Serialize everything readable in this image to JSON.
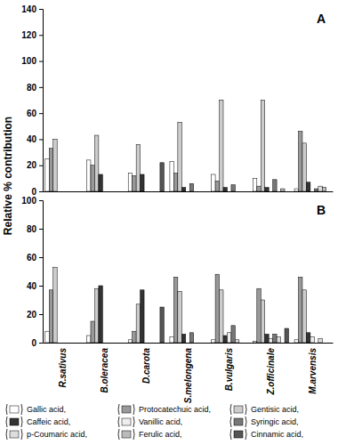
{
  "chart_data": [
    {
      "type": "bar",
      "title": "A",
      "ylabel": "Relative % contribution",
      "categories": [
        "R.sativus",
        "B.oleracea",
        "D.carota",
        "S.melongena",
        "B.vulgaris",
        "Z.officinale",
        "M.arvensis"
      ],
      "ylim": [
        0,
        140
      ],
      "yticks": [
        0,
        20,
        40,
        60,
        80,
        100,
        120,
        140
      ],
      "tick_labels": "y",
      "legend": false,
      "series": [
        {
          "name": "Gallic acid,",
          "color": "#ffffff",
          "values": [
            25,
            24,
            14,
            23,
            13,
            10,
            2
          ]
        },
        {
          "name": "Protocatechuic acid,",
          "color": "#999999",
          "values": [
            33,
            20,
            12,
            14,
            8,
            4,
            46
          ]
        },
        {
          "name": "Gentisic acid,",
          "color": "#cccccc",
          "values": [
            40,
            43,
            36,
            53,
            70,
            70,
            37
          ]
        },
        {
          "name": "Caffeic acid,",
          "color": "#333333",
          "values": [
            0,
            13,
            13,
            3,
            3,
            3,
            7
          ]
        },
        {
          "name": "Vanillic acid,",
          "color": "#eeeeee",
          "values": [
            0,
            0,
            0,
            0,
            0,
            0,
            0
          ]
        },
        {
          "name": "Syringic acid,",
          "color": "#777777",
          "values": [
            0,
            0,
            0,
            6,
            5,
            9,
            2
          ]
        },
        {
          "name": "p-Coumaric acid,",
          "color": "#dddddd",
          "values": [
            0,
            0,
            0,
            0,
            0,
            0,
            4
          ]
        },
        {
          "name": "Ferulic acid,",
          "color": "#bbbbbb",
          "values": [
            0,
            0,
            0,
            0,
            0,
            2,
            3
          ]
        },
        {
          "name": "Cinnamic acid,",
          "color": "#555555",
          "values": [
            0,
            0,
            22,
            0,
            0,
            0,
            0
          ]
        }
      ]
    },
    {
      "type": "bar",
      "title": "B",
      "categories": [
        "R.sativus",
        "B.oleracea",
        "D.carota",
        "S.melongena",
        "B.vulgaris",
        "Z.officinale",
        "M.arvensis"
      ],
      "ylim": [
        0,
        100
      ],
      "yticks": [
        0,
        20,
        40,
        60,
        80,
        100
      ],
      "legend": "bottom",
      "series": [
        {
          "name": "Gallic acid,",
          "color": "#ffffff",
          "values": [
            8,
            5,
            2,
            4,
            2,
            1,
            2
          ]
        },
        {
          "name": "Protocatechuic acid,",
          "color": "#999999",
          "values": [
            37,
            15,
            8,
            46,
            48,
            38,
            46
          ]
        },
        {
          "name": "Gentisic acid,",
          "color": "#cccccc",
          "values": [
            53,
            38,
            27,
            36,
            37,
            30,
            37
          ]
        },
        {
          "name": "Caffeic acid,",
          "color": "#333333",
          "values": [
            0,
            40,
            37,
            6,
            5,
            6,
            7
          ]
        },
        {
          "name": "Vanillic acid,",
          "color": "#eeeeee",
          "values": [
            0,
            0,
            0,
            0,
            7,
            3,
            4
          ]
        },
        {
          "name": "Syringic acid,",
          "color": "#777777",
          "values": [
            0,
            0,
            0,
            7,
            12,
            6,
            0
          ]
        },
        {
          "name": "p-Coumaric acid,",
          "color": "#dddddd",
          "values": [
            0,
            0,
            0,
            0,
            2,
            4,
            3
          ]
        },
        {
          "name": "Ferulic acid,",
          "color": "#bbbbbb",
          "values": [
            0,
            0,
            0,
            0,
            0,
            0,
            0
          ]
        },
        {
          "name": "Cinnamic acid,",
          "color": "#555555",
          "values": [
            0,
            0,
            25,
            0,
            0,
            10,
            0
          ]
        }
      ]
    }
  ]
}
